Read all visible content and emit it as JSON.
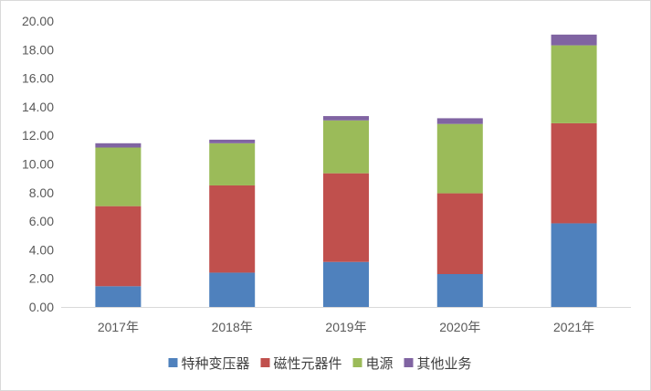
{
  "chart_data": {
    "type": "bar",
    "stacked": true,
    "categories": [
      "2017年",
      "2018年",
      "2019年",
      "2020年",
      "2021年"
    ],
    "series": [
      {
        "name": "特种变压器",
        "color": "#4f81bd",
        "values": [
          1.45,
          2.4,
          3.15,
          2.3,
          5.85
        ]
      },
      {
        "name": "磁性元器件",
        "color": "#c0504d",
        "values": [
          5.6,
          6.1,
          6.2,
          5.65,
          7.0
        ]
      },
      {
        "name": "电源",
        "color": "#9bbb59",
        "values": [
          4.1,
          2.95,
          3.7,
          4.85,
          5.45
        ]
      },
      {
        "name": "其他业务",
        "color": "#8064a2",
        "values": [
          0.3,
          0.25,
          0.3,
          0.4,
          0.75
        ]
      }
    ],
    "y_ticks": [
      "0.00",
      "2.00",
      "4.00",
      "6.00",
      "8.00",
      "10.00",
      "12.00",
      "14.00",
      "16.00",
      "18.00",
      "20.00"
    ],
    "ylim": [
      0,
      20
    ],
    "grid": false,
    "legend_position": "bottom"
  }
}
